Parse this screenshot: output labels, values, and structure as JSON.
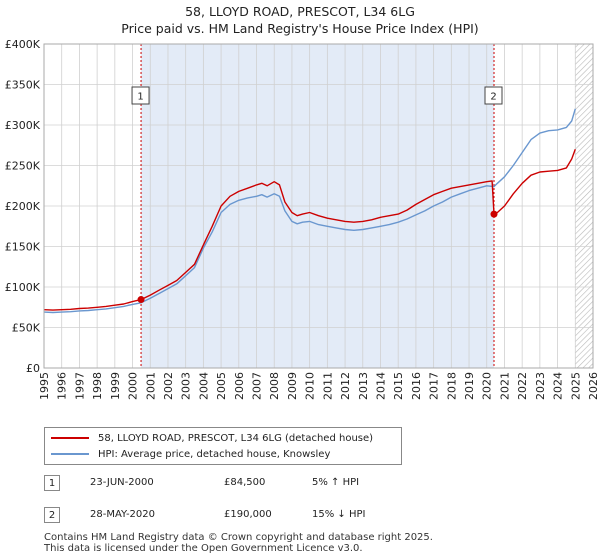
{
  "title_line1": "58, LLOYD ROAD, PRESCOT, L34 6LG",
  "title_line2": "Price paid vs. HM Land Registry's House Price Index (HPI)",
  "colors": {
    "price": "#cc0000",
    "hpi": "#6a97cf",
    "shade": "#e3ebf7",
    "grid": "#d0d0d0"
  },
  "chart_data": {
    "type": "line",
    "xlim": [
      1995,
      2026
    ],
    "ylim": [
      0,
      400000
    ],
    "yticks": [
      0,
      50000,
      100000,
      150000,
      200000,
      250000,
      300000,
      350000,
      400000
    ],
    "ytick_labels": [
      "£0",
      "£50K",
      "£100K",
      "£150K",
      "£200K",
      "£250K",
      "£300K",
      "£350K",
      "£400K"
    ],
    "xticks": [
      "1995",
      "1996",
      "1997",
      "1998",
      "1999",
      "2000",
      "2001",
      "2002",
      "2003",
      "2004",
      "2005",
      "2006",
      "2007",
      "2008",
      "2009",
      "2010",
      "2011",
      "2012",
      "2013",
      "2014",
      "2015",
      "2016",
      "2017",
      "2018",
      "2019",
      "2020",
      "2021",
      "2022",
      "2023",
      "2024",
      "2025",
      "2026"
    ],
    "shaded_range": [
      2000.48,
      2020.41
    ],
    "forecast_from": 2025.0,
    "series": [
      {
        "name": "58, LLOYD ROAD, PRESCOT, L34 6LG (detached house)",
        "x": [
          1995.0,
          1995.5,
          1996.0,
          1996.5,
          1997.0,
          1997.5,
          1998.0,
          1998.5,
          1999.0,
          1999.5,
          2000.0,
          2000.48,
          2001.0,
          2001.5,
          2002.0,
          2002.5,
          2003.0,
          2003.5,
          2004.0,
          2004.5,
          2005.0,
          2005.5,
          2006.0,
          2006.5,
          2007.0,
          2007.3,
          2007.6,
          2008.0,
          2008.3,
          2008.6,
          2009.0,
          2009.3,
          2009.6,
          2010.0,
          2010.5,
          2011.0,
          2011.5,
          2012.0,
          2012.5,
          2013.0,
          2013.5,
          2014.0,
          2014.5,
          2015.0,
          2015.5,
          2016.0,
          2016.5,
          2017.0,
          2017.5,
          2018.0,
          2018.5,
          2019.0,
          2019.5,
          2020.0,
          2020.3,
          2020.41,
          2020.6,
          2021.0,
          2021.5,
          2022.0,
          2022.5,
          2023.0,
          2023.5,
          2024.0,
          2024.5,
          2024.8,
          2025.0
        ],
        "values": [
          72000,
          71500,
          72000,
          72500,
          73500,
          74000,
          75000,
          76000,
          77500,
          79000,
          82000,
          84500,
          90000,
          96000,
          102000,
          108000,
          118000,
          128000,
          152000,
          175000,
          200000,
          212000,
          218000,
          222000,
          226000,
          228000,
          225000,
          230000,
          226000,
          205000,
          192000,
          188000,
          190000,
          192000,
          188000,
          185000,
          183000,
          181000,
          180000,
          181000,
          183000,
          186000,
          188000,
          190000,
          195000,
          202000,
          208000,
          214000,
          218000,
          222000,
          224000,
          226000,
          228000,
          230000,
          231000,
          190000,
          192000,
          200000,
          215000,
          228000,
          238000,
          242000,
          243000,
          244000,
          247000,
          258000,
          270000
        ]
      },
      {
        "name": "HPI: Average price, detached house, Knowsley",
        "x": [
          1995.0,
          1995.5,
          1996.0,
          1996.5,
          1997.0,
          1997.5,
          1998.0,
          1998.5,
          1999.0,
          1999.5,
          2000.0,
          2000.48,
          2001.0,
          2001.5,
          2002.0,
          2002.5,
          2003.0,
          2003.5,
          2004.0,
          2004.5,
          2005.0,
          2005.5,
          2006.0,
          2006.5,
          2007.0,
          2007.3,
          2007.6,
          2008.0,
          2008.3,
          2008.6,
          2009.0,
          2009.3,
          2009.6,
          2010.0,
          2010.5,
          2011.0,
          2011.5,
          2012.0,
          2012.5,
          2013.0,
          2013.5,
          2014.0,
          2014.5,
          2015.0,
          2015.5,
          2016.0,
          2016.5,
          2017.0,
          2017.5,
          2018.0,
          2018.5,
          2019.0,
          2019.5,
          2020.0,
          2020.41,
          2020.6,
          2021.0,
          2021.5,
          2022.0,
          2022.5,
          2023.0,
          2023.5,
          2024.0,
          2024.5,
          2024.8,
          2025.0
        ],
        "values": [
          69000,
          68500,
          69000,
          69500,
          70500,
          71000,
          72000,
          73000,
          74500,
          76000,
          78500,
          80500,
          86000,
          92000,
          98000,
          104000,
          114000,
          124000,
          148000,
          168000,
          192000,
          202000,
          207000,
          210000,
          212000,
          214000,
          211000,
          215000,
          212000,
          194000,
          181000,
          178000,
          180000,
          181000,
          177000,
          175000,
          173000,
          171000,
          170000,
          171000,
          173000,
          175000,
          177000,
          180000,
          184000,
          189000,
          194000,
          200000,
          205000,
          211000,
          215000,
          219000,
          222000,
          225000,
          224000,
          228000,
          236000,
          250000,
          266000,
          282000,
          290000,
          293000,
          294000,
          297000,
          305000,
          320000
        ]
      }
    ]
  },
  "markers": [
    {
      "label": "1",
      "year": 2000.48,
      "value": 84500
    },
    {
      "label": "2",
      "year": 2020.41,
      "value": 190000
    }
  ],
  "legend": {
    "price": "58, LLOYD ROAD, PRESCOT, L34 6LG (detached house)",
    "hpi": "HPI: Average price, detached house, Knowsley"
  },
  "transactions": [
    {
      "num": "1",
      "date": "23-JUN-2000",
      "price": "£84,500",
      "hpi": "5% ↑ HPI"
    },
    {
      "num": "2",
      "date": "28-MAY-2020",
      "price": "£190,000",
      "hpi": "15% ↓ HPI"
    }
  ],
  "footer_line1": "Contains HM Land Registry data © Crown copyright and database right 2025.",
  "footer_line2": "This data is licensed under the Open Government Licence v3.0."
}
